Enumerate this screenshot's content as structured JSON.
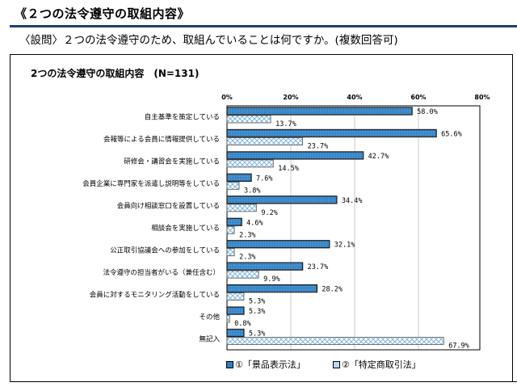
{
  "heading": "《２つの法令遵守の取組内容》",
  "question": "〈設問〉２つの法令遵守のため、取組んでいることは何ですか。(複数回答可)",
  "chart_data": {
    "type": "bar",
    "orientation": "horizontal",
    "title": "2つの法令遵守の取組内容　(N=131)",
    "xlim": [
      0,
      80
    ],
    "xticks": [
      "0%",
      "20%",
      "40%",
      "60%",
      "80%"
    ],
    "grid": true,
    "legend": "bottom",
    "categories": [
      "自主基準を策定している",
      "会報等による会員に情報提供している",
      "研修会・講習会を実施している",
      "会員企業に専門家を派遣し説明等をしている",
      "会員向け相談窓口を設置している",
      "相談会を実施している",
      "公正取引協議会への参加をしている",
      "法令遵守の担当者がいる（兼任含む）",
      "会員に対するモニタリング活動をしている",
      "その他",
      "無記入"
    ],
    "series": [
      {
        "name": "①「景品表示法」",
        "values": [
          58.0,
          65.6,
          42.7,
          7.6,
          34.4,
          4.6,
          32.1,
          23.7,
          28.2,
          5.3,
          5.3
        ],
        "color": "#2e7fc4"
      },
      {
        "name": "②「特定商取引法」",
        "values": [
          13.7,
          23.7,
          14.5,
          3.8,
          9.2,
          2.3,
          2.3,
          9.9,
          5.3,
          0.8,
          67.9
        ],
        "color": "#bcd8f0"
      }
    ]
  }
}
